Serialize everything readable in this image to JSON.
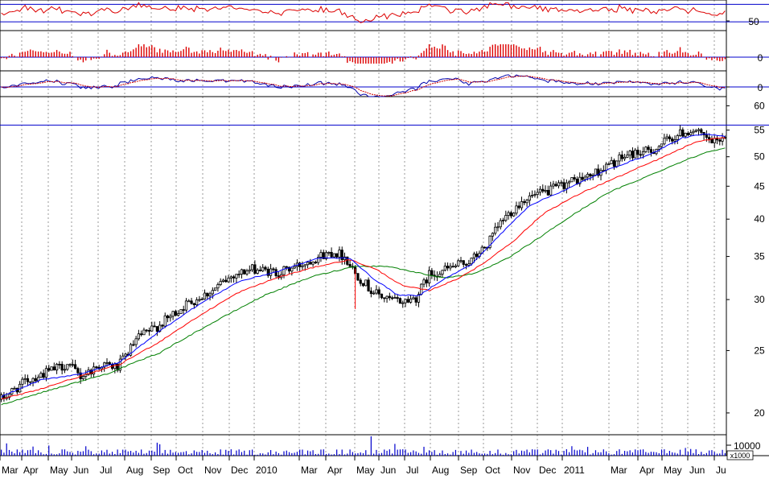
{
  "colors": {
    "background": "#ffffff",
    "candle": "#000000",
    "ma_fast": "#0000ff",
    "ma_mid": "#ff0000",
    "ma_slow": "#008000",
    "oscillator": "#dd0000",
    "histogram": "#dd0000",
    "macd": "#0000aa",
    "signal": "#cc0000",
    "reference_line": "#0000cc",
    "volume": "#0000cc",
    "grid": "#999999"
  },
  "chart_data": [
    {
      "type": "line",
      "panel": "oscillator",
      "y_tick_labels": [
        "50"
      ],
      "reference_levels": [
        70,
        30
      ],
      "note_series": "red oscillator around 50"
    },
    {
      "type": "bar",
      "panel": "histogram",
      "y_tick_labels": [
        "0"
      ],
      "reference_levels": [
        0
      ]
    },
    {
      "type": "line",
      "panel": "macd",
      "y_tick_labels": [
        "0"
      ],
      "reference_levels": [
        0
      ]
    },
    {
      "type": "candlestick",
      "panel": "price",
      "scale": "log",
      "ylim": [
        18.5,
        62
      ],
      "y_tick_labels": [
        "60",
        "55",
        "50",
        "45",
        "40",
        "35",
        "30",
        "25",
        "20"
      ],
      "y_ticks": [
        60,
        55,
        50,
        45,
        40,
        35,
        30,
        25,
        20
      ],
      "reference_levels": [
        56
      ],
      "x_labels": [
        "Mar",
        "Apr",
        "May",
        "Jun",
        "Jul",
        "Aug",
        "Sep",
        "Oct",
        "Nov",
        "Dec",
        "2010",
        "Mar",
        "Apr",
        "May",
        "Jun",
        "Jul",
        "Aug",
        "Sep",
        "Oct",
        "Nov",
        "Dec",
        "2011",
        "Mar",
        "Apr",
        "May",
        "Jun",
        "Ju"
      ],
      "price_path": [
        [
          0,
          21.0
        ],
        [
          10,
          22.5
        ],
        [
          18,
          23.2
        ],
        [
          25,
          23.8
        ],
        [
          30,
          22.8
        ],
        [
          38,
          23.8
        ],
        [
          44,
          23.5
        ],
        [
          52,
          26.2
        ],
        [
          60,
          27.4
        ],
        [
          70,
          29.5
        ],
        [
          80,
          31.0
        ],
        [
          88,
          32.8
        ],
        [
          96,
          33.5
        ],
        [
          100,
          33.2
        ],
        [
          105,
          33.0
        ],
        [
          112,
          33.8
        ],
        [
          120,
          35.0
        ],
        [
          126,
          35.6
        ],
        [
          130,
          35.0
        ],
        [
          134,
          33.0
        ],
        [
          140,
          31.0
        ],
        [
          146,
          30.0
        ],
        [
          152,
          29.8
        ],
        [
          157,
          30.2
        ],
        [
          162,
          32.8
        ],
        [
          170,
          33.6
        ],
        [
          178,
          34.5
        ],
        [
          184,
          36.5
        ],
        [
          190,
          40.0
        ],
        [
          198,
          43.0
        ],
        [
          206,
          44.0
        ],
        [
          214,
          45.5
        ],
        [
          222,
          46.5
        ],
        [
          230,
          48.5
        ],
        [
          238,
          50.5
        ],
        [
          246,
          51.0
        ],
        [
          252,
          53.0
        ],
        [
          258,
          54.5
        ],
        [
          262,
          55.0
        ],
        [
          266,
          53.5
        ],
        [
          270,
          52.5
        ],
        [
          274,
          54.0
        ]
      ],
      "ma_fast_path": [
        [
          0,
          21.2
        ],
        [
          15,
          22.5
        ],
        [
          30,
          23.0
        ],
        [
          45,
          24.0
        ],
        [
          60,
          26.8
        ],
        [
          75,
          29.5
        ],
        [
          90,
          32.0
        ],
        [
          105,
          33.2
        ],
        [
          120,
          34.8
        ],
        [
          132,
          34.8
        ],
        [
          140,
          32.5
        ],
        [
          150,
          30.5
        ],
        [
          158,
          30.4
        ],
        [
          166,
          32.0
        ],
        [
          178,
          34.0
        ],
        [
          188,
          37.5
        ],
        [
          200,
          42.0
        ],
        [
          214,
          44.5
        ],
        [
          230,
          47.8
        ],
        [
          246,
          50.5
        ],
        [
          258,
          53.5
        ],
        [
          266,
          54.2
        ],
        [
          274,
          53.8
        ]
      ],
      "ma_mid_path": [
        [
          0,
          21.0
        ],
        [
          15,
          21.8
        ],
        [
          30,
          22.8
        ],
        [
          45,
          23.8
        ],
        [
          60,
          25.8
        ],
        [
          75,
          28.3
        ],
        [
          90,
          30.8
        ],
        [
          105,
          32.5
        ],
        [
          120,
          33.8
        ],
        [
          132,
          34.6
        ],
        [
          142,
          33.4
        ],
        [
          152,
          31.5
        ],
        [
          162,
          31.0
        ],
        [
          172,
          32.2
        ],
        [
          182,
          34.0
        ],
        [
          194,
          37.0
        ],
        [
          206,
          41.0
        ],
        [
          220,
          44.0
        ],
        [
          236,
          47.0
        ],
        [
          250,
          49.8
        ],
        [
          262,
          52.5
        ],
        [
          270,
          53.4
        ],
        [
          274,
          53.5
        ]
      ],
      "ma_slow_path": [
        [
          0,
          20.6
        ],
        [
          20,
          21.8
        ],
        [
          40,
          23.0
        ],
        [
          60,
          24.8
        ],
        [
          80,
          27.6
        ],
        [
          100,
          30.5
        ],
        [
          118,
          32.6
        ],
        [
          134,
          33.8
        ],
        [
          146,
          33.8
        ],
        [
          158,
          33.0
        ],
        [
          168,
          32.4
        ],
        [
          180,
          33.0
        ],
        [
          192,
          34.8
        ],
        [
          204,
          37.5
        ],
        [
          216,
          40.5
        ],
        [
          230,
          44.0
        ],
        [
          244,
          46.5
        ],
        [
          258,
          49.2
        ],
        [
          268,
          51.0
        ],
        [
          274,
          51.6
        ]
      ]
    },
    {
      "type": "bar",
      "panel": "volume",
      "y_tick_labels": [
        "10000"
      ],
      "multiplier_label": "x1000"
    }
  ],
  "volume_spike_label": ""
}
